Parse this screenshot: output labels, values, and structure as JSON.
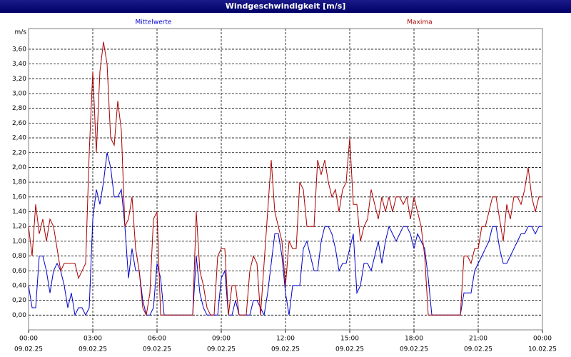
{
  "chart_data": {
    "type": "line",
    "title": "Windgeschwindigkeit [m/s]",
    "y_label": "m/s",
    "x": [
      0,
      10,
      20,
      30,
      40,
      50,
      60,
      70,
      80,
      90,
      100,
      110,
      120,
      130,
      140,
      150,
      160,
      170,
      180,
      190,
      200,
      210,
      220,
      230,
      240,
      250,
      260,
      270,
      280,
      290,
      300,
      310,
      320,
      330,
      340,
      350,
      360,
      370,
      380,
      390,
      400,
      410,
      420,
      430,
      440,
      450,
      460,
      470,
      480,
      490,
      500,
      510,
      520,
      530,
      540,
      550,
      560,
      570,
      580,
      590,
      600,
      610,
      620,
      630,
      640,
      650,
      660,
      670,
      680,
      690,
      700,
      710,
      720,
      730,
      740,
      750,
      760,
      770,
      780,
      790,
      800,
      810,
      820,
      830,
      840,
      850,
      860,
      870,
      880,
      890,
      900,
      910,
      920,
      930,
      940,
      950,
      960,
      970,
      980,
      990,
      1000,
      1010,
      1020,
      1030,
      1040,
      1050,
      1060,
      1070,
      1080,
      1090,
      1100,
      1110,
      1120,
      1130,
      1140,
      1150,
      1160,
      1170,
      1180,
      1190,
      1200,
      1210,
      1220,
      1230,
      1240,
      1250,
      1260,
      1270,
      1280,
      1290,
      1300,
      1310,
      1320,
      1330,
      1340,
      1350,
      1360,
      1370,
      1380,
      1390,
      1400,
      1410,
      1420,
      1430,
      1440
    ],
    "series": [
      {
        "name": "Mittelwerte",
        "color": "#0000cc",
        "values": [
          0.4,
          0.1,
          0.1,
          0.8,
          0.8,
          0.6,
          0.3,
          0.6,
          0.7,
          0.6,
          0.4,
          0.1,
          0.3,
          0,
          0.1,
          0.1,
          0,
          0.1,
          1.3,
          1.7,
          1.5,
          1.8,
          2.2,
          2.0,
          1.6,
          1.6,
          1.7,
          1.2,
          0.5,
          0.9,
          0.6,
          0.6,
          0.2,
          0,
          0,
          0.1,
          0.7,
          0.5,
          0,
          0,
          0,
          0,
          0,
          0,
          0,
          0,
          0,
          0.8,
          0.3,
          0.1,
          0,
          0,
          0,
          0,
          0.5,
          0.6,
          0,
          0,
          0.2,
          0,
          0,
          0,
          0,
          0.2,
          0.2,
          0.1,
          0,
          0.3,
          0.7,
          1.1,
          1.1,
          0.8,
          0.3,
          0,
          0.4,
          0.4,
          0.4,
          0.9,
          1.0,
          0.8,
          0.6,
          0.6,
          1.0,
          1.2,
          1.2,
          1.1,
          0.9,
          0.6,
          0.7,
          0.7,
          0.9,
          1.1,
          0.3,
          0.4,
          0.7,
          0.7,
          0.6,
          0.8,
          1.0,
          0.7,
          1.0,
          1.2,
          1.1,
          1.0,
          1.1,
          1.2,
          1.2,
          1.1,
          0.9,
          1.1,
          1.0,
          0.9,
          0.5,
          0,
          0,
          0,
          0,
          0,
          0,
          0,
          0,
          0,
          0.3,
          0.3,
          0.3,
          0.6,
          0.7,
          0.8,
          0.9,
          1.0,
          1.2,
          1.2,
          0.9,
          0.7,
          0.7,
          0.8,
          0.9,
          1.0,
          1.1,
          1.1,
          1.2,
          1.2,
          1.1,
          1.2,
          1.2
        ]
      },
      {
        "name": "Maxima",
        "color": "#aa0000",
        "values": [
          1.2,
          0.8,
          1.5,
          1.1,
          1.3,
          1.0,
          1.3,
          1.2,
          0.9,
          0.6,
          0.7,
          0.7,
          0.7,
          0.7,
          0.5,
          0.6,
          0.7,
          2.2,
          3.3,
          2.2,
          3.3,
          3.7,
          3.4,
          2.4,
          2.3,
          2.9,
          2.5,
          1.2,
          1.3,
          1.6,
          0.9,
          0.6,
          0.1,
          0,
          0.3,
          1.3,
          1.4,
          0,
          0,
          0,
          0,
          0,
          0,
          0,
          0,
          0,
          0,
          1.4,
          0.6,
          0.4,
          0.1,
          0,
          0,
          0.8,
          0.9,
          0.9,
          0,
          0.4,
          0.4,
          0,
          0,
          0,
          0.6,
          0.8,
          0.7,
          0,
          0.7,
          1.4,
          2.1,
          1.4,
          1.2,
          1.0,
          0.4,
          1.0,
          0.9,
          0.9,
          1.8,
          1.7,
          1.2,
          1.2,
          1.2,
          2.1,
          1.9,
          2.1,
          1.8,
          1.6,
          1.7,
          1.4,
          1.7,
          1.8,
          2.4,
          1.5,
          1.5,
          1.0,
          1.2,
          1.3,
          1.7,
          1.5,
          1.3,
          1.6,
          1.4,
          1.6,
          1.4,
          1.6,
          1.6,
          1.5,
          1.6,
          1.3,
          1.6,
          1.4,
          1.2,
          0.8,
          0,
          0,
          0,
          0,
          0,
          0,
          0,
          0,
          0,
          0,
          0.8,
          0.8,
          0.7,
          0.9,
          0.9,
          1.2,
          1.2,
          1.4,
          1.6,
          1.6,
          1.3,
          1.0,
          1.5,
          1.3,
          1.6,
          1.6,
          1.5,
          1.7,
          2.0,
          1.6,
          1.4,
          1.6,
          1.6
        ]
      }
    ],
    "xlim": [
      0,
      1440
    ],
    "xticks": [
      {
        "value": 0,
        "label": "00:00"
      },
      {
        "value": 180,
        "label": "03:00"
      },
      {
        "value": 360,
        "label": "06:00"
      },
      {
        "value": 540,
        "label": "09:00"
      },
      {
        "value": 720,
        "label": "12:00"
      },
      {
        "value": 900,
        "label": "15:00"
      },
      {
        "value": 1080,
        "label": "18:00"
      },
      {
        "value": 1260,
        "label": "21:00"
      },
      {
        "value": 1440,
        "label": "00:00"
      }
    ],
    "xtick_dates": [
      "09.02.25",
      "09.02.25",
      "09.02.25",
      "09.02.25",
      "09.02.25",
      "09.02.25",
      "09.02.25",
      "09.02.25",
      "10.02.25"
    ],
    "ylim": [
      -0.2,
      3.88
    ],
    "yticks": [
      {
        "value": 0,
        "label": "0,00"
      },
      {
        "value": 0.2,
        "label": "0,20"
      },
      {
        "value": 0.4,
        "label": "0,40"
      },
      {
        "value": 0.6,
        "label": "0,60"
      },
      {
        "value": 0.8,
        "label": "0,80"
      },
      {
        "value": 1.0,
        "label": "1,00"
      },
      {
        "value": 1.2,
        "label": "1,20"
      },
      {
        "value": 1.4,
        "label": "1,40"
      },
      {
        "value": 1.6,
        "label": "1,60"
      },
      {
        "value": 1.8,
        "label": "1,80"
      },
      {
        "value": 2.0,
        "label": "2,00"
      },
      {
        "value": 2.2,
        "label": "2,20"
      },
      {
        "value": 2.4,
        "label": "2,40"
      },
      {
        "value": 2.6,
        "label": "2,60"
      },
      {
        "value": 2.8,
        "label": "2,80"
      },
      {
        "value": 3.0,
        "label": "3,00"
      },
      {
        "value": 3.2,
        "label": "3,20"
      },
      {
        "value": 3.4,
        "label": "3,40"
      },
      {
        "value": 3.6,
        "label": "3,60"
      }
    ],
    "grid": true
  }
}
